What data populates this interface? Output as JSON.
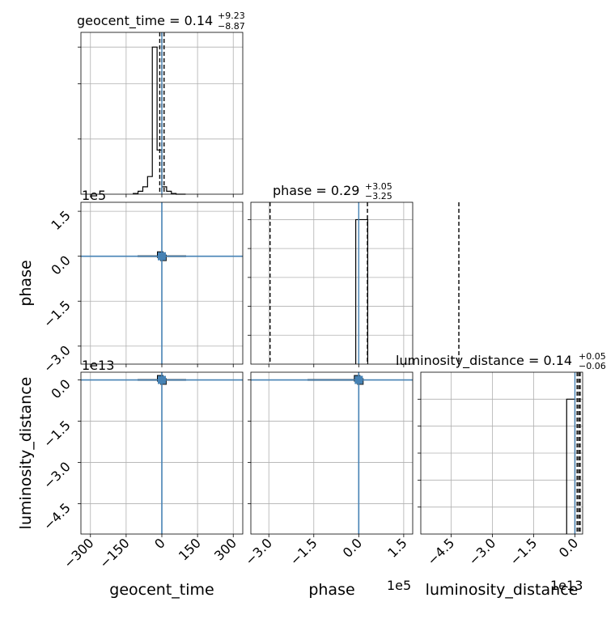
{
  "chart_data": {
    "type": "corner",
    "parameters": [
      "geocent_time",
      "phase",
      "luminosity_distance"
    ],
    "titles": [
      {
        "prefix": "geocent_time = ",
        "value": "0.14",
        "plus": "+9.23",
        "minus": "−8.87"
      },
      {
        "prefix": "phase = ",
        "value": "0.29",
        "plus": "+3.05",
        "minus": "−3.25"
      },
      {
        "prefix": "luminosity_distance = ",
        "value": "0.14",
        "plus": "+0.05",
        "minus": "−0.06"
      }
    ],
    "axes": {
      "geocent_time": {
        "label": "geocent_time",
        "range": [
          -340,
          340
        ],
        "ticks": [
          -300,
          -150,
          0,
          150,
          300
        ],
        "tick_labels": [
          "−300",
          "−150",
          "0",
          "150",
          "300"
        ],
        "offset_text": ""
      },
      "phase": {
        "label": "phase",
        "range": [
          -3.6,
          1.8
        ],
        "ticks": [
          -3.0,
          -1.5,
          0.0,
          1.5
        ],
        "tick_labels": [
          "−3.0",
          "−1.5",
          "0.0",
          "1.5"
        ],
        "offset_text": "1e5"
      },
      "luminosity_distance": {
        "label": "luminosity_distance",
        "range": [
          -5.6,
          0.28
        ],
        "ticks": [
          -4.5,
          -3.0,
          -1.5,
          0.0
        ],
        "tick_labels": [
          "−4.5",
          "−3.0",
          "−1.5",
          "0.0"
        ],
        "offset_text": "1e13"
      }
    },
    "histograms": {
      "geocent_time": {
        "bin_edges": [
          -120,
          -100,
          -80,
          -60,
          -40,
          -20,
          0,
          20,
          40,
          60,
          80,
          100
        ],
        "counts": [
          0.005,
          0.02,
          0.05,
          0.12,
          1.0,
          0.3,
          0.05,
          0.02,
          0.005,
          0,
          0
        ],
        "ylim": [
          0,
          1.1
        ],
        "quantiles": [
          -8.73,
          0.14,
          9.37
        ]
      },
      "phase": {
        "bin_edges": [
          -0.1,
          0.0,
          0.3
        ],
        "counts": [
          1.0,
          1.0
        ],
        "ylim": [
          0,
          1.12
        ],
        "quantiles": [
          -2.96,
          0.29,
          3.34
        ],
        "y_ticks": [
          0.2,
          0.4,
          0.6,
          0.8,
          1.0
        ]
      },
      "luminosity_distance": {
        "bin_edges": [
          -0.3,
          0.0
        ],
        "counts": [
          1.0
        ],
        "ylim": [
          0,
          1.2
        ],
        "quantiles": [
          0.08,
          0.14,
          0.19
        ],
        "y_ticks": [
          0.2,
          0.4,
          0.6,
          0.8,
          1.0
        ]
      }
    },
    "truth": {
      "geocent_time": 0,
      "phase": 0,
      "luminosity_distance": 0,
      "color": "#4682b4"
    },
    "grid": true
  }
}
